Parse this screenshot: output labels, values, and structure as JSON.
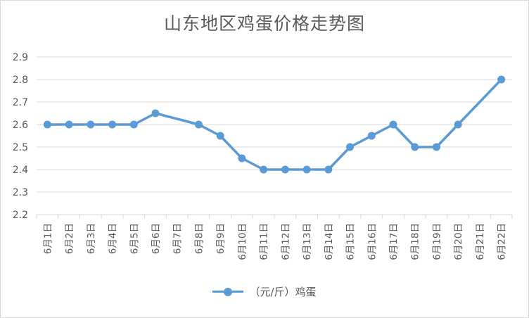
{
  "chart_data": {
    "type": "line",
    "title": "山东地区鸡蛋价格走势图",
    "categories": [
      "6月1日",
      "6月2日",
      "6月3日",
      "6月4日",
      "6月5日",
      "6月6日",
      "6月7日",
      "6月8日",
      "6月9日",
      "6月10日",
      "6月11日",
      "6月12日",
      "6月13日",
      "6月14日",
      "6月15日",
      "6月16日",
      "6月17日",
      "6月18日",
      "6月19日",
      "6月20日",
      "6月21日",
      "6月22日"
    ],
    "series": [
      {
        "name": "（元/斤）鸡蛋",
        "values": [
          2.6,
          2.6,
          2.6,
          2.6,
          2.6,
          2.65,
          null,
          2.6,
          2.55,
          2.45,
          2.4,
          2.4,
          2.4,
          2.4,
          2.5,
          2.55,
          2.6,
          2.5,
          2.5,
          2.6,
          null,
          2.8
        ]
      }
    ],
    "ylim": [
      2.2,
      2.9
    ],
    "yticks": [
      "2.2",
      "2.3",
      "2.4",
      "2.5",
      "2.6",
      "2.7",
      "2.8",
      "2.9"
    ],
    "grid": true,
    "legend": "bottom",
    "colors": {
      "series": "#5b9bd5",
      "grid": "#d9d9d9",
      "text": "#595959"
    }
  }
}
